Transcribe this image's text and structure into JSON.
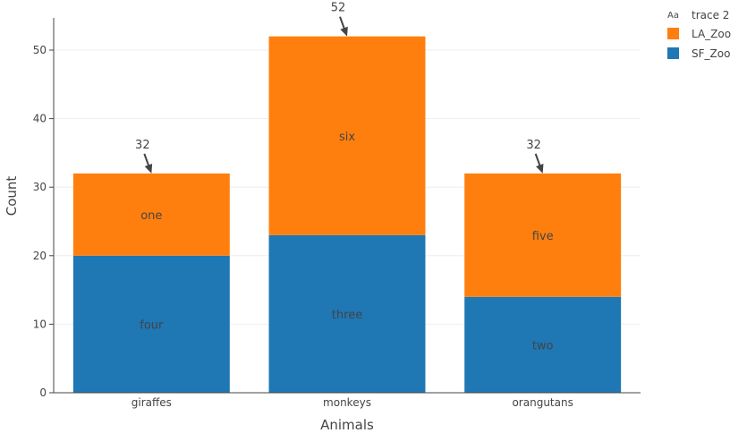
{
  "chart_data": {
    "type": "bar",
    "barmode": "stack",
    "categories": [
      "giraffes",
      "monkeys",
      "orangutans"
    ],
    "series": [
      {
        "name": "SF_Zoo",
        "values": [
          20,
          23,
          14
        ],
        "labels": [
          "four",
          "three",
          "two"
        ],
        "color": "#1f77b4"
      },
      {
        "name": "LA_Zoo",
        "values": [
          12,
          29,
          18
        ],
        "labels": [
          "one",
          "six",
          "five"
        ],
        "color": "#ff7f0e"
      }
    ],
    "extra_trace": {
      "name": "trace 2",
      "symbol": "Aa"
    },
    "annotations": [
      {
        "category": "giraffes",
        "y": 32,
        "text": "32"
      },
      {
        "category": "monkeys",
        "y": 52,
        "text": "52"
      },
      {
        "category": "orangutans",
        "y": 32,
        "text": "32"
      }
    ],
    "xlabel": "Animals",
    "ylabel": "Count",
    "ylim": [
      0,
      54.7
    ],
    "yticks": [
      0,
      10,
      20,
      30,
      40,
      50
    ],
    "grid": true,
    "legend_position": "top-right"
  }
}
